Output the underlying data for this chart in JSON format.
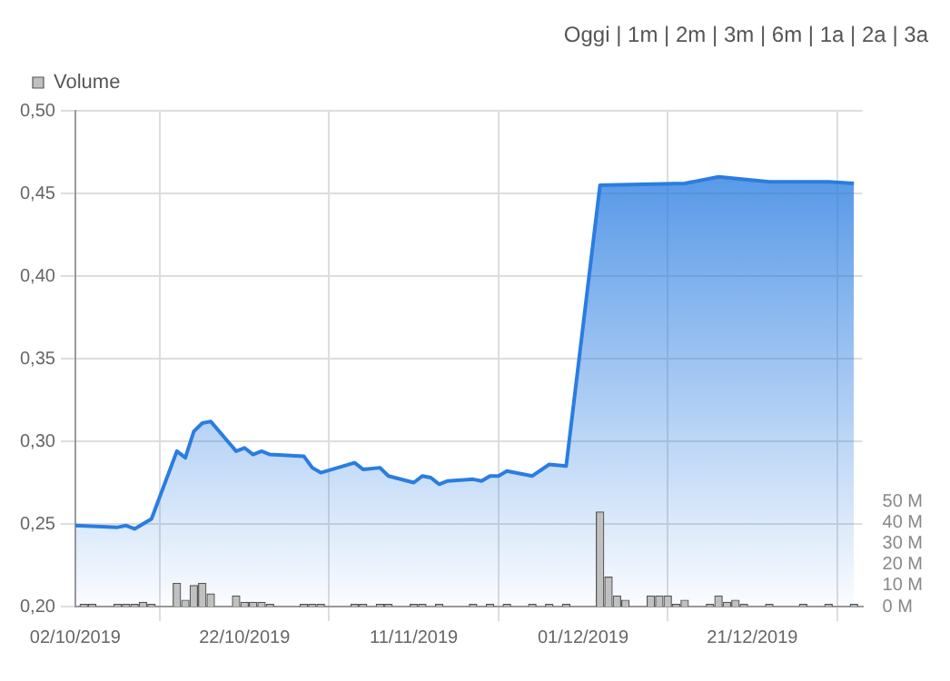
{
  "chart_data": {
    "type": "area",
    "annotations": [
      "Oggi | 1m | 2m | 3m | 6m | 1a | 2a | 3a"
    ],
    "xlim": [
      "2019-10-02",
      "2020-01-03"
    ],
    "xticks": [
      {
        "value": "2019-10-02",
        "label": "02/10/2019"
      },
      {
        "value": "2019-10-22",
        "label": "22/10/2019"
      },
      {
        "value": "2019-11-11",
        "label": "11/11/2019"
      },
      {
        "value": "2019-12-01",
        "label": "01/12/2019"
      },
      {
        "value": "2019-12-21",
        "label": "21/12/2019"
      }
    ],
    "ylim": [
      0.2,
      0.5
    ],
    "yticks": [
      {
        "value": 0.2,
        "label": "0,20"
      },
      {
        "value": 0.25,
        "label": "0,25"
      },
      {
        "value": 0.3,
        "label": "0,30"
      },
      {
        "value": 0.35,
        "label": "0,35"
      },
      {
        "value": 0.4,
        "label": "0,40"
      },
      {
        "value": 0.45,
        "label": "0,45"
      },
      {
        "value": 0.5,
        "label": "0,50"
      }
    ],
    "y2lim": [
      0,
      236
    ],
    "y2ticks": [
      {
        "value": 0,
        "label": "0 M"
      },
      {
        "value": 10,
        "label": "10 M"
      },
      {
        "value": 20,
        "label": "20 M"
      },
      {
        "value": 30,
        "label": "30 M"
      },
      {
        "value": 40,
        "label": "40 M"
      },
      {
        "value": 50,
        "label": "50 M"
      }
    ],
    "grid": true,
    "legend": "top left",
    "series": [
      {
        "color": "#2a7de1",
        "x": [
          "2019-10-02",
          "2019-10-07",
          "2019-10-08",
          "2019-10-09",
          "2019-10-11",
          "2019-10-14",
          "2019-10-15",
          "2019-10-16",
          "2019-10-17",
          "2019-10-18",
          "2019-10-21",
          "2019-10-22",
          "2019-10-23",
          "2019-10-24",
          "2019-10-25",
          "2019-10-29",
          "2019-10-30",
          "2019-10-31",
          "2019-11-04",
          "2019-11-05",
          "2019-11-07",
          "2019-11-08",
          "2019-11-11",
          "2019-11-12",
          "2019-11-13",
          "2019-11-14",
          "2019-11-15",
          "2019-11-18",
          "2019-11-19",
          "2019-11-20",
          "2019-11-21",
          "2019-11-22",
          "2019-11-25",
          "2019-11-27",
          "2019-11-29",
          "2019-12-03",
          "2019-12-13",
          "2019-12-17",
          "2019-12-23",
          "2019-12-30",
          "2020-01-02"
        ],
        "values": [
          0.249,
          0.248,
          0.249,
          0.247,
          0.253,
          0.294,
          0.29,
          0.306,
          0.311,
          0.312,
          0.294,
          0.296,
          0.292,
          0.294,
          0.292,
          0.291,
          0.284,
          0.281,
          0.287,
          0.283,
          0.284,
          0.279,
          0.275,
          0.279,
          0.278,
          0.274,
          0.276,
          0.277,
          0.276,
          0.279,
          0.279,
          0.282,
          0.279,
          0.286,
          0.285,
          0.455,
          0.456,
          0.46,
          0.457,
          0.457,
          0.456
        ]
      },
      {
        "type": "bar",
        "name": "Volume",
        "axis": "y2",
        "color": "#c0c0c0",
        "x": [
          "2019-10-03",
          "2019-10-04",
          "2019-10-07",
          "2019-10-08",
          "2019-10-09",
          "2019-10-10",
          "2019-10-11",
          "2019-10-14",
          "2019-10-15",
          "2019-10-16",
          "2019-10-17",
          "2019-10-18",
          "2019-10-21",
          "2019-10-22",
          "2019-10-23",
          "2019-10-24",
          "2019-10-25",
          "2019-10-29",
          "2019-10-30",
          "2019-10-31",
          "2019-11-04",
          "2019-11-05",
          "2019-11-07",
          "2019-11-08",
          "2019-11-11",
          "2019-11-12",
          "2019-11-14",
          "2019-11-18",
          "2019-11-20",
          "2019-11-22",
          "2019-11-25",
          "2019-11-27",
          "2019-11-29",
          "2019-12-03",
          "2019-12-04",
          "2019-12-05",
          "2019-12-06",
          "2019-12-09",
          "2019-12-10",
          "2019-12-11",
          "2019-12-12",
          "2019-12-13",
          "2019-12-16",
          "2019-12-17",
          "2019-12-18",
          "2019-12-19",
          "2019-12-20",
          "2019-12-23",
          "2019-12-27",
          "2019-12-30",
          "2020-01-02"
        ],
        "values": [
          1,
          1,
          1,
          1,
          1,
          2,
          1,
          11,
          3,
          10,
          11,
          6,
          5,
          2,
          2,
          2,
          1,
          1,
          1,
          1,
          1,
          1,
          1,
          1,
          1,
          1,
          1,
          1,
          1,
          1,
          1,
          1,
          1,
          45,
          14,
          5,
          3,
          5,
          5,
          5,
          1,
          3,
          1,
          5,
          2,
          3,
          1,
          1,
          1,
          1,
          1
        ]
      }
    ]
  }
}
